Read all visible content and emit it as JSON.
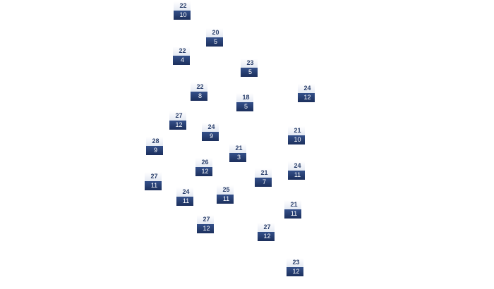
{
  "nodes": [
    {
      "top": "22",
      "bottom": "10"
    },
    {
      "top": "20",
      "bottom": "5"
    },
    {
      "top": "22",
      "bottom": "4"
    },
    {
      "top": "23",
      "bottom": "5"
    },
    {
      "top": "22",
      "bottom": "8"
    },
    {
      "top": "24",
      "bottom": "12"
    },
    {
      "top": "18",
      "bottom": "5"
    },
    {
      "top": "27",
      "bottom": "12"
    },
    {
      "top": "24",
      "bottom": "9"
    },
    {
      "top": "21",
      "bottom": "10"
    },
    {
      "top": "28",
      "bottom": "9"
    },
    {
      "top": "21",
      "bottom": "3"
    },
    {
      "top": "26",
      "bottom": "12"
    },
    {
      "top": "24",
      "bottom": "11"
    },
    {
      "top": "27",
      "bottom": "11"
    },
    {
      "top": "21",
      "bottom": "7"
    },
    {
      "top": "24",
      "bottom": "11"
    },
    {
      "top": "25",
      "bottom": "11"
    },
    {
      "top": "21",
      "bottom": "11"
    },
    {
      "top": "27",
      "bottom": "12"
    },
    {
      "top": "27",
      "bottom": "12"
    },
    {
      "top": "23",
      "bottom": "12"
    }
  ]
}
